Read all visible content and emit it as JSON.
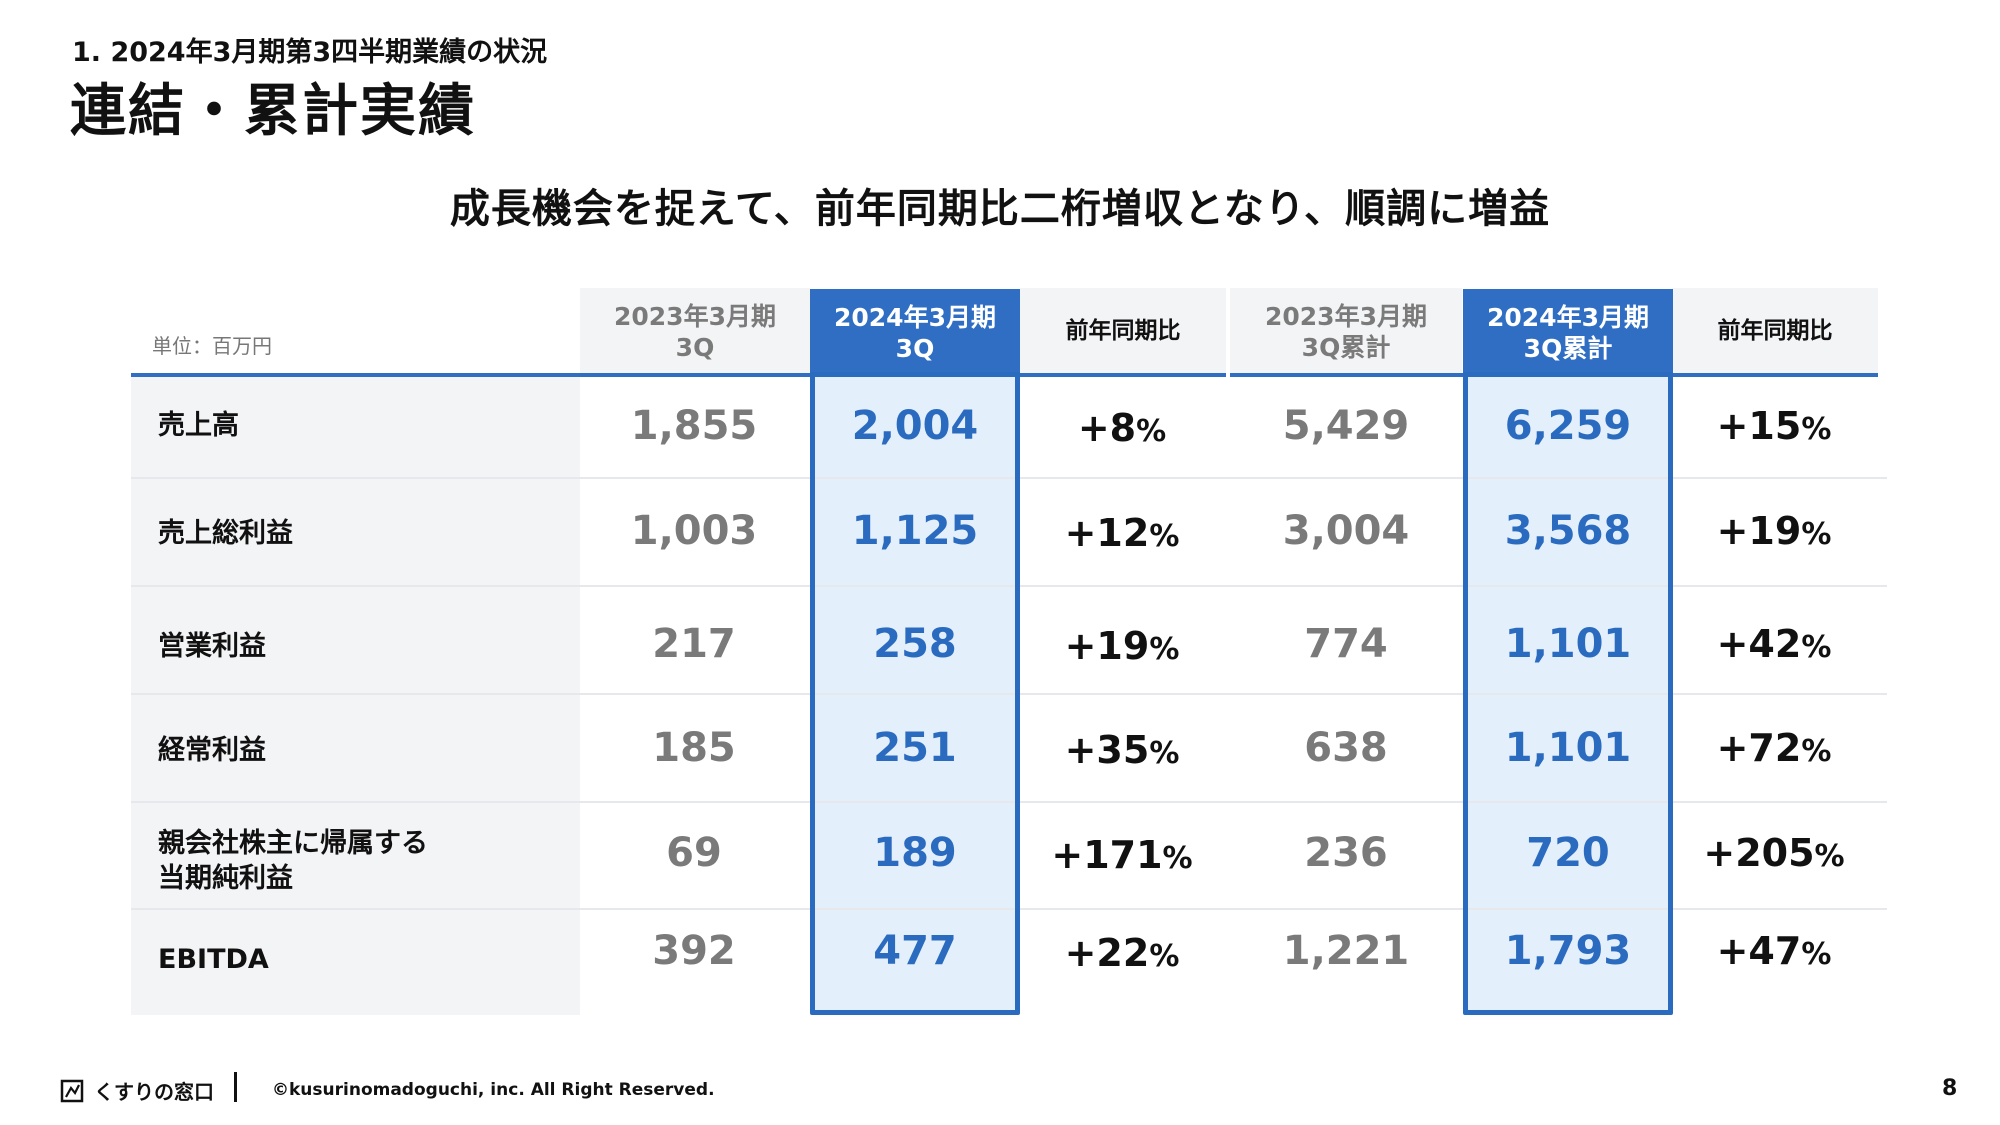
{
  "header": {
    "section": "1. 2024年3月期第3四半期業績の状況",
    "title": "連結・累計実績",
    "headline": "成長機会を捉えて、前年同期比二桁増収となり、順調に増益"
  },
  "table": {
    "unit": "単位：百万円",
    "columns": [
      {
        "line1": "2023年3月期",
        "line2": "3Q"
      },
      {
        "line1": "2024年3月期",
        "line2": "3Q"
      },
      {
        "line1": "前年同期比",
        "line2": ""
      },
      {
        "line1": "2023年3月期",
        "line2": "3Q累計"
      },
      {
        "line1": "2024年3月期",
        "line2": "3Q累計"
      },
      {
        "line1": "前年同期比",
        "line2": ""
      }
    ],
    "rows": [
      {
        "label1": "売上高",
        "label2": "",
        "prev_q": "1,855",
        "curr_q": "2,004",
        "yoy_q": "+8",
        "prev_cum": "5,429",
        "curr_cum": "6,259",
        "yoy_cum": "+15"
      },
      {
        "label1": "売上総利益",
        "label2": "",
        "prev_q": "1,003",
        "curr_q": "1,125",
        "yoy_q": "+12",
        "prev_cum": "3,004",
        "curr_cum": "3,568",
        "yoy_cum": "+19"
      },
      {
        "label1": "営業利益",
        "label2": "",
        "prev_q": "217",
        "curr_q": "258",
        "yoy_q": "+19",
        "prev_cum": "774",
        "curr_cum": "1,101",
        "yoy_cum": "+42"
      },
      {
        "label1": "経常利益",
        "label2": "",
        "prev_q": "185",
        "curr_q": "251",
        "yoy_q": "+35",
        "prev_cum": "638",
        "curr_cum": "1,101",
        "yoy_cum": "+72"
      },
      {
        "label1": "親会社株主に帰属する",
        "label2": "当期純利益",
        "prev_q": "69",
        "curr_q": "189",
        "yoy_q": "+171",
        "prev_cum": "236",
        "curr_cum": "720",
        "yoy_cum": "+205"
      },
      {
        "label1": "EBITDA",
        "label2": "",
        "prev_q": "392",
        "curr_q": "477",
        "yoy_q": "+22",
        "prev_cum": "1,221",
        "curr_cum": "1,793",
        "yoy_cum": "+47"
      }
    ],
    "percent_sign": "%"
  },
  "footer": {
    "brand": "くすりの窓口",
    "copyright": "©kusurinomadoguchi, inc. All Right Reserved.",
    "page": "8"
  },
  "colors": {
    "accent": "#2f6ec2",
    "highlight": "#e3f0fb",
    "muted": "#7a7a7a"
  }
}
